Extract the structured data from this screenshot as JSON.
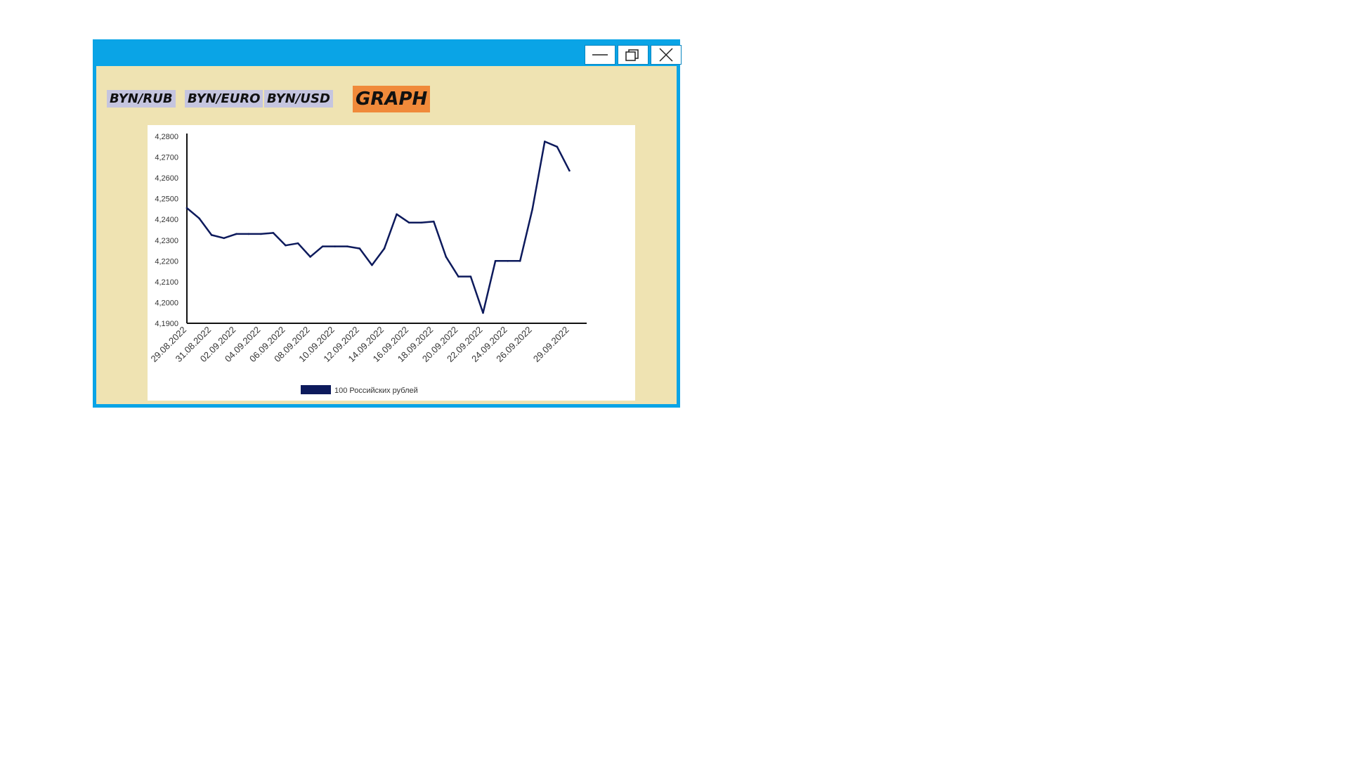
{
  "window": {
    "controls": {
      "minimize_icon": "minimize-icon",
      "maximize_icon": "restore-icon",
      "close_icon": "close-icon"
    },
    "title_bar_color": "#0aa4e6",
    "background_color": "#efe3b2"
  },
  "tabs": [
    {
      "label": "BYN/RUB"
    },
    {
      "label": "BYN/EURO"
    },
    {
      "label": "BYN/USD"
    }
  ],
  "graph_button": {
    "label": "GRAPH",
    "color": "#f08a3a"
  },
  "chart_data": {
    "type": "line",
    "ylim": [
      4.19,
      4.28
    ],
    "yticks": [
      "4,1900",
      "4,2000",
      "4,2100",
      "4,2200",
      "4,2300",
      "4,2400",
      "4,2500",
      "4,2600",
      "4,2700",
      "4,2800"
    ],
    "xtick_labels": [
      "29.08.2022",
      "31.08.2022",
      "02.09.2022",
      "04.09.2022",
      "06.09.2022",
      "08.09.2022",
      "10.09.2022",
      "12.09.2022",
      "14.09.2022",
      "16.09.2022",
      "18.09.2022",
      "20.09.2022",
      "22.09.2022",
      "24.09.2022",
      "26.09.2022",
      "29.09.2022"
    ],
    "xtick_dates": [
      "2022-08-29",
      "2022-08-31",
      "2022-09-02",
      "2022-09-04",
      "2022-09-06",
      "2022-09-08",
      "2022-09-10",
      "2022-09-12",
      "2022-09-14",
      "2022-09-16",
      "2022-09-18",
      "2022-09-20",
      "2022-09-22",
      "2022-09-24",
      "2022-09-26",
      "2022-09-29"
    ],
    "x": [
      "2022-08-29",
      "2022-08-30",
      "2022-08-31",
      "2022-09-01",
      "2022-09-02",
      "2022-09-03",
      "2022-09-04",
      "2022-09-05",
      "2022-09-06",
      "2022-09-07",
      "2022-09-08",
      "2022-09-09",
      "2022-09-10",
      "2022-09-11",
      "2022-09-12",
      "2022-09-13",
      "2022-09-14",
      "2022-09-15",
      "2022-09-16",
      "2022-09-17",
      "2022-09-18",
      "2022-09-19",
      "2022-09-20",
      "2022-09-21",
      "2022-09-22",
      "2022-09-23",
      "2022-09-24",
      "2022-09-25",
      "2022-09-26",
      "2022-09-27",
      "2022-09-28",
      "2022-09-29",
      "2022-09-30"
    ],
    "series": [
      {
        "name": "100 Российских рублей",
        "color": "#0d1a5c",
        "values": [
          4.2455,
          4.2405,
          4.2325,
          4.231,
          4.233,
          4.233,
          4.233,
          4.2335,
          4.2275,
          4.2285,
          4.222,
          4.227,
          4.227,
          4.227,
          4.226,
          4.218,
          4.226,
          4.2425,
          4.2385,
          4.2385,
          4.239,
          4.222,
          4.2125,
          4.2125,
          4.195,
          4.22,
          4.22,
          4.22,
          4.245,
          4.2775,
          4.275,
          4.2635,
          null
        ]
      }
    ],
    "legend": {
      "position": "bottom",
      "label": "100 Российских рублей"
    },
    "grid": false
  }
}
